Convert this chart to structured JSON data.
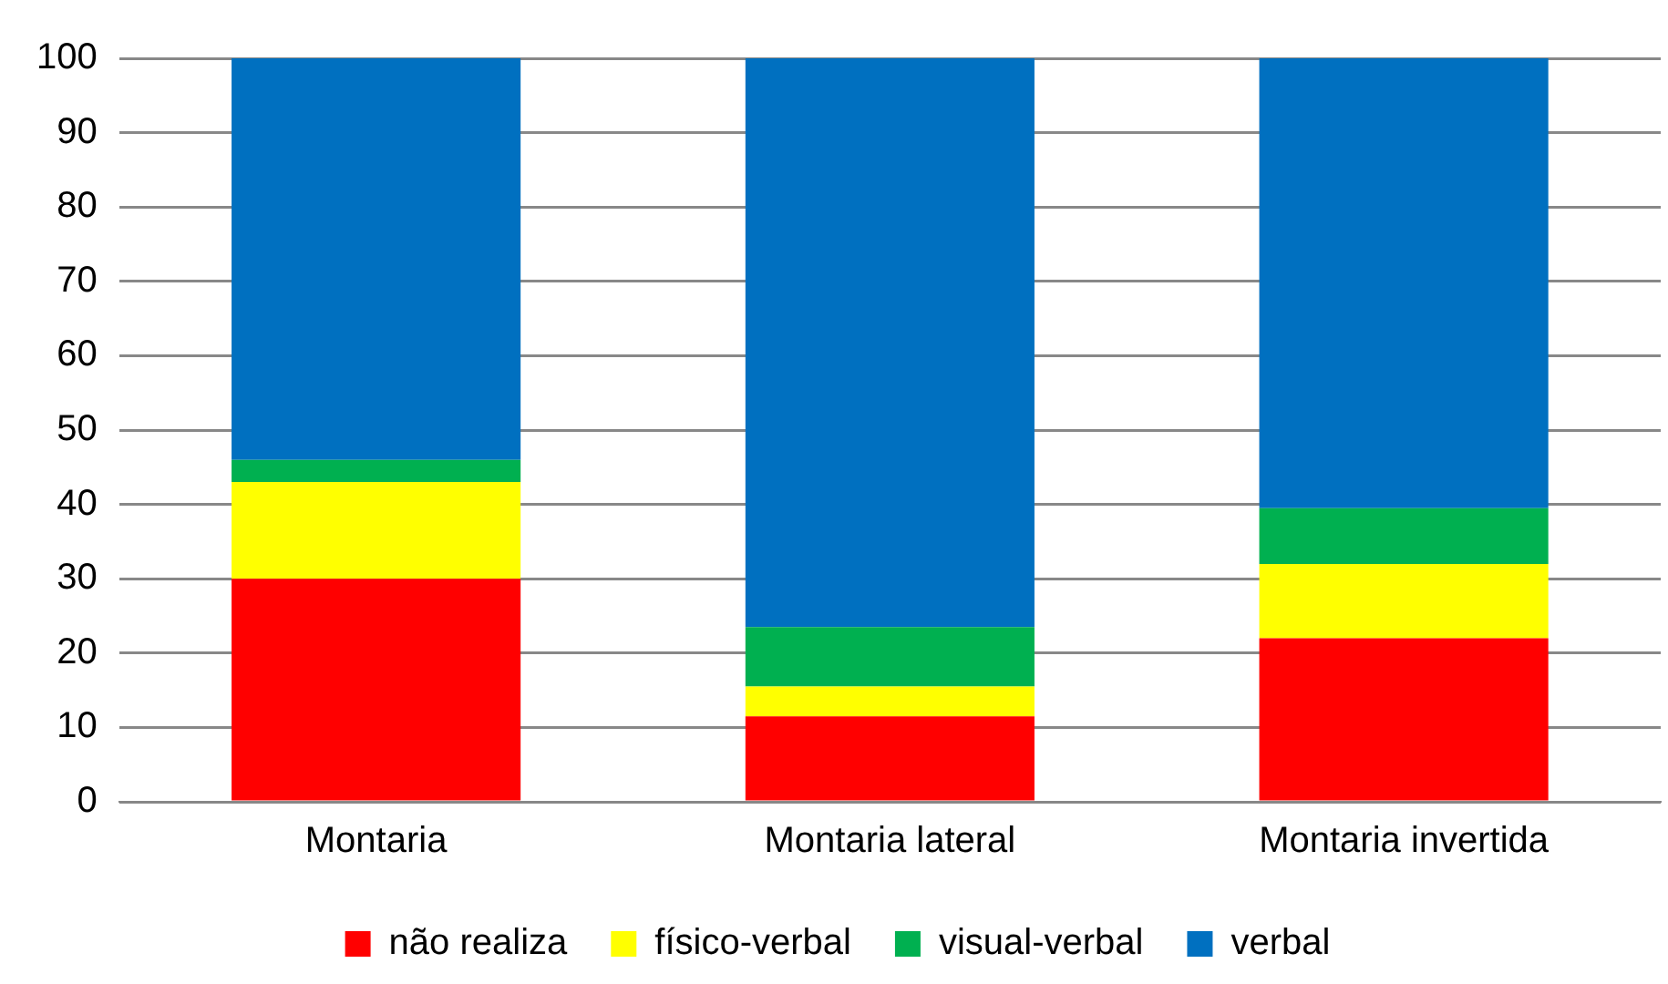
{
  "chart_data": {
    "type": "bar",
    "stacked": true,
    "categories": [
      "Montaria",
      "Montaria lateral",
      "Montaria invertida"
    ],
    "series": [
      {
        "name": "não realiza",
        "color": "#ff0000",
        "values": [
          30,
          11.5,
          22
        ]
      },
      {
        "name": "físico-verbal",
        "color": "#ffff00",
        "values": [
          13,
          4,
          10
        ]
      },
      {
        "name": "visual-verbal",
        "color": "#00b050",
        "values": [
          3,
          8,
          7.5
        ]
      },
      {
        "name": "verbal",
        "color": "#0070c0",
        "values": [
          54,
          76.5,
          60.5
        ]
      }
    ],
    "ylim": [
      0,
      100
    ],
    "yticks": [
      0,
      10,
      20,
      30,
      40,
      50,
      60,
      70,
      80,
      90,
      100
    ],
    "grid": "y",
    "legend": "bottom"
  }
}
